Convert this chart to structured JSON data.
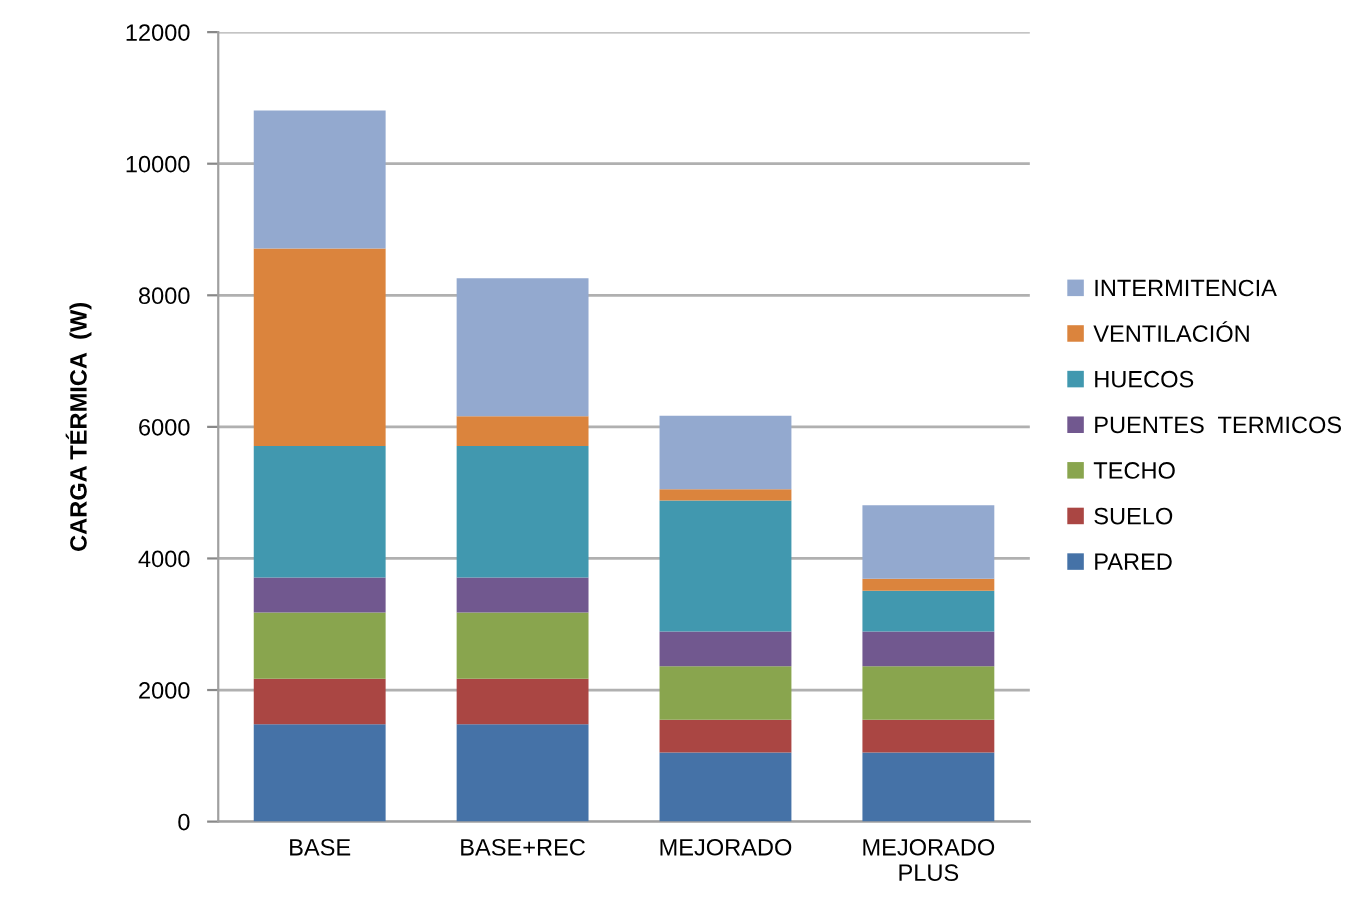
{
  "chart_data": {
    "type": "bar",
    "stacked": true,
    "ylabel": "CARGA TÉRMICA  (W)",
    "categories": [
      "BASE",
      "BASE+REC",
      "MEJORADO",
      "MEJORADO PLUS"
    ],
    "series": [
      {
        "name": "PARED",
        "color": "#4572a7",
        "values": [
          1480,
          1480,
          1050,
          1050
        ]
      },
      {
        "name": "SUELO",
        "color": "#aa4643",
        "values": [
          690,
          690,
          500,
          500
        ]
      },
      {
        "name": "TECHO",
        "color": "#89a54e",
        "values": [
          1010,
          1010,
          810,
          810
        ]
      },
      {
        "name": "PUENTES  TERMICOS",
        "color": "#71588f",
        "values": [
          530,
          530,
          530,
          530
        ]
      },
      {
        "name": "HUECOS",
        "color": "#4198af",
        "values": [
          2000,
          2000,
          1990,
          620
        ]
      },
      {
        "name": "VENTILACIÓN",
        "color": "#db843d",
        "values": [
          3000,
          450,
          170,
          180
        ]
      },
      {
        "name": "INTERMITENCIA",
        "color": "#93a9cf",
        "values": [
          2100,
          2100,
          1120,
          1120
        ]
      }
    ],
    "ylim": [
      0,
      12000
    ],
    "yticks": [
      0,
      2000,
      4000,
      6000,
      8000,
      10000,
      12000
    ],
    "grid": "y",
    "legend": "right"
  }
}
